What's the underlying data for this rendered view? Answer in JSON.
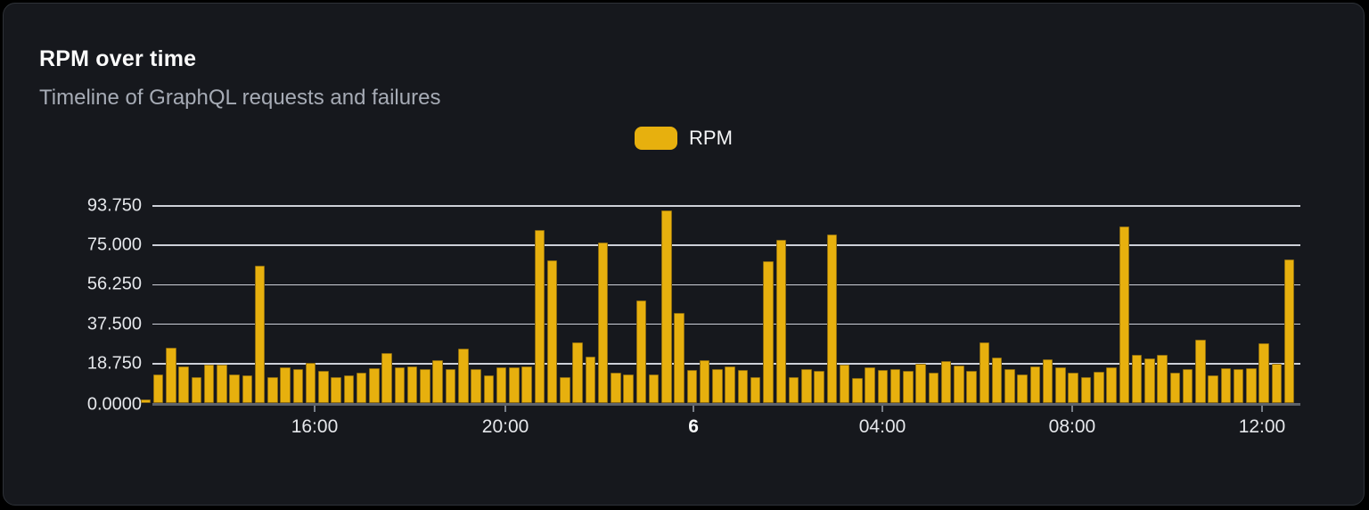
{
  "card": {
    "title": "RPM over time",
    "subtitle": "Timeline of GraphQL requests and failures"
  },
  "legend": {
    "label": "RPM",
    "swatch_color": "#e7b00e"
  },
  "colors": {
    "card_background": "#16181d",
    "page_background": "#000000",
    "bar_fill": "#e7b00e",
    "bar_border": "#8f6d10",
    "gridline": "#dde1e8",
    "axis_line": "#5d626b",
    "text_primary": "#fafafa",
    "text_secondary": "#a6abb5",
    "tick_label": "#e5e7eb"
  },
  "chart_data": {
    "type": "bar",
    "title": "RPM over time",
    "subtitle": "Timeline of GraphQL requests and failures",
    "series_name": "RPM",
    "xlabel": "",
    "ylabel": "",
    "ylim": [
      0,
      93.75
    ],
    "grid": true,
    "legend_position": "top-center",
    "yticks": [
      {
        "value": 0,
        "label": "0.0000"
      },
      {
        "value": 18.75,
        "label": "18.750"
      },
      {
        "value": 37.5,
        "label": "37.500"
      },
      {
        "value": 56.25,
        "label": "56.250"
      },
      {
        "value": 75,
        "label": "75.000"
      },
      {
        "value": 93.75,
        "label": "93.750"
      }
    ],
    "xticks": [
      {
        "label": "16:00",
        "pos": 0.1413,
        "bold": false
      },
      {
        "label": "20:00",
        "pos": 0.3075,
        "bold": false
      },
      {
        "label": "6",
        "pos": 0.4713,
        "bold": true
      },
      {
        "label": "04:00",
        "pos": 0.6359,
        "bold": false
      },
      {
        "label": "08:00",
        "pos": 0.8012,
        "bold": false
      },
      {
        "label": "12:00",
        "pos": 0.9666,
        "bold": false
      }
    ],
    "values": [
      1.6,
      13.4,
      26.3,
      17.4,
      12.2,
      18.4,
      18.1,
      13.6,
      13.2,
      65.5,
      12.2,
      17.1,
      16.3,
      19.1,
      15.3,
      12.4,
      13.2,
      14.6,
      16.7,
      23.8,
      17.0,
      17.4,
      16.3,
      20.5,
      16.0,
      25.9,
      16.3,
      13.2,
      17.1,
      17.1,
      17.4,
      82.2,
      67.9,
      12.4,
      29.0,
      21.9,
      76.5,
      14.3,
      13.4,
      48.8,
      13.6,
      91.5,
      42.9,
      15.6,
      20.5,
      16.3,
      17.4,
      15.6,
      12.4,
      67.6,
      77.5,
      12.2,
      16.3,
      15.3,
      80.2,
      18.1,
      12.0,
      17.1,
      15.6,
      16.3,
      15.3,
      18.8,
      14.6,
      19.8,
      17.7,
      15.3,
      28.7,
      21.6,
      16.3,
      13.6,
      17.4,
      20.9,
      17.1,
      14.3,
      12.2,
      14.8,
      17.0,
      83.9,
      23.1,
      21.2,
      22.8,
      14.6,
      16.3,
      30.1,
      13.2,
      16.7,
      16.3,
      16.4,
      28.4,
      18.5,
      68.3
    ]
  }
}
